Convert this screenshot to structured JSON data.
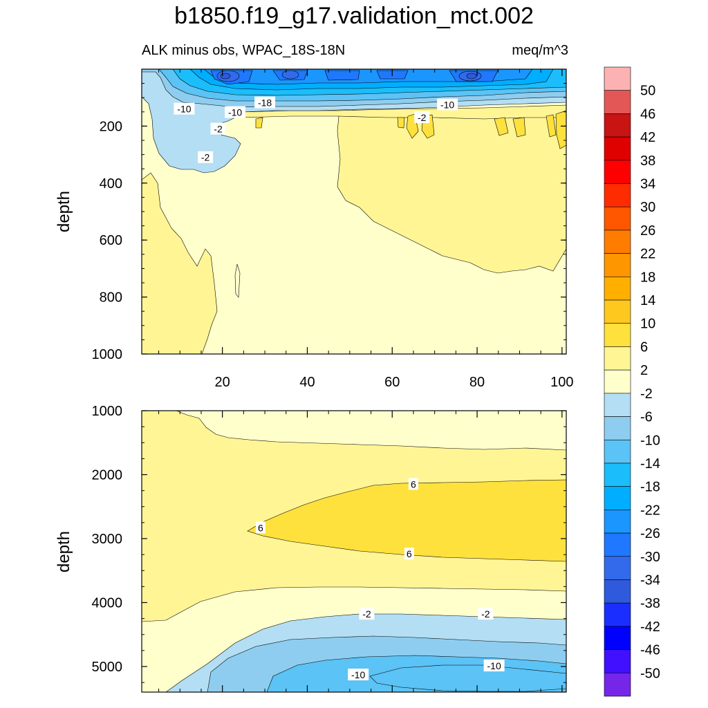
{
  "title": "b1850.f19_g17.validation_mct.002",
  "subtitle_left": "ALK minus obs, WPAC_18S-18N",
  "subtitle_right": "meq/m^3",
  "chart_data": [
    {
      "type": "contour",
      "panel": "upper",
      "ylabel": "depth",
      "xlabel": "",
      "xlim": [
        1,
        101
      ],
      "ylim": [
        0,
        1000
      ],
      "y_reversed": true,
      "x_ticks": [
        20,
        40,
        60,
        80,
        100
      ],
      "y_ticks": [
        200,
        400,
        600,
        800,
        1000
      ],
      "contour_labels": [
        {
          "text": "-10",
          "x": 11,
          "y": 140
        },
        {
          "text": "-10",
          "x": 23,
          "y": 152
        },
        {
          "text": "-18",
          "x": 30,
          "y": 118
        },
        {
          "text": "-10",
          "x": 73,
          "y": 125
        },
        {
          "text": "-2",
          "x": 67,
          "y": 170
        },
        {
          "text": "-2",
          "x": 19,
          "y": 210
        },
        {
          "text": "-2",
          "x": 16,
          "y": 310
        }
      ]
    },
    {
      "type": "contour",
      "panel": "lower",
      "ylabel": "depth",
      "xlabel": "",
      "xlim": [
        1,
        101
      ],
      "ylim": [
        1000,
        5400
      ],
      "y_reversed": true,
      "y_ticks": [
        1000,
        2000,
        3000,
        4000,
        5000
      ],
      "contour_labels": [
        {
          "text": "6",
          "x": 65,
          "y": 2150
        },
        {
          "text": "6",
          "x": 29,
          "y": 2830
        },
        {
          "text": "6",
          "x": 64,
          "y": 3240
        },
        {
          "text": "-2",
          "x": 54,
          "y": 4180
        },
        {
          "text": "-2",
          "x": 82,
          "y": 4180
        },
        {
          "text": "-10",
          "x": 52,
          "y": 5130
        },
        {
          "text": "-10",
          "x": 84,
          "y": 4990
        }
      ]
    }
  ],
  "colorbar": {
    "labels": [
      "50",
      "46",
      "42",
      "38",
      "34",
      "30",
      "26",
      "22",
      "18",
      "14",
      "10",
      "6",
      "2",
      "-2",
      "-6",
      "-10",
      "-14",
      "-18",
      "-22",
      "-26",
      "-30",
      "-34",
      "-38",
      "-42",
      "-46",
      "-50"
    ],
    "colors": [
      "#FCB2B2",
      "#E35757",
      "#C91414",
      "#DF0000",
      "#FE0000",
      "#FE2C00",
      "#FE5700",
      "#FE7C00",
      "#FE9600",
      "#FEAF00",
      "#FEC81F",
      "#FFE13D",
      "#FFF595",
      "#FFFFCC",
      "#B3DEF4",
      "#8ECDEF",
      "#5BC3F5",
      "#1BBDFA",
      "#00AEFF",
      "#1B96FF",
      "#1F78FF",
      "#336AEB",
      "#2F5ADC",
      "#1A2FFF",
      "#0000FF",
      "#4010FF",
      "#7626E9"
    ]
  }
}
